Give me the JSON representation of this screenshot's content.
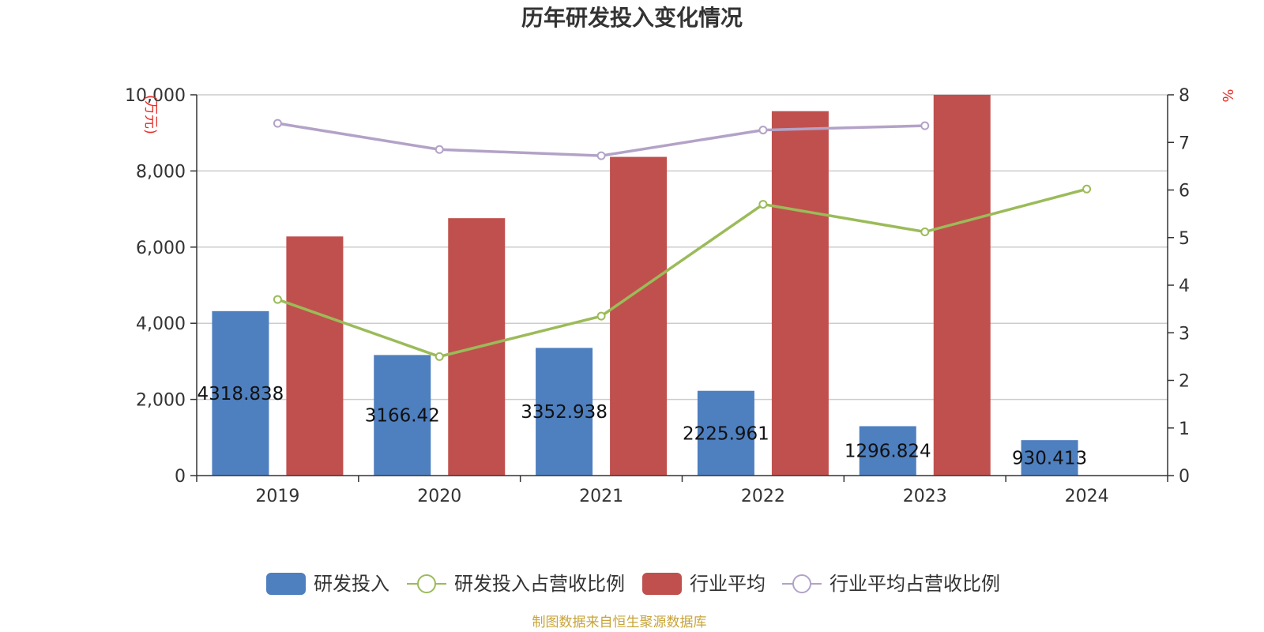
{
  "chart_data": {
    "type": "bar",
    "title": "历年研发投入变化情况",
    "categories": [
      "2019",
      "2020",
      "2021",
      "2022",
      "2023",
      "2024"
    ],
    "left_axis": {
      "unit": "(万元)",
      "min": 0,
      "max": 10000,
      "ticks": [
        "0",
        "2,000",
        "4,000",
        "6,000",
        "8,000",
        "10,000"
      ]
    },
    "right_axis": {
      "unit": "%",
      "min": 0,
      "max": 8,
      "ticks": [
        "0",
        "1",
        "2",
        "3",
        "4",
        "5",
        "6",
        "7",
        "8"
      ]
    },
    "grid": true,
    "legend_position": "bottom",
    "series": [
      {
        "name": "研发投入",
        "type": "bar",
        "axis": "left",
        "color": "#4e7fbf",
        "values": [
          4318.838,
          3166.42,
          3352.938,
          2225.961,
          1296.824,
          930.413
        ],
        "labels": [
          "4318.838",
          "3166.42",
          "3352.938",
          "2225.961",
          "1296.824",
          "930.413"
        ]
      },
      {
        "name": "研发投入占营收比例",
        "type": "line",
        "axis": "right",
        "color": "#9bbb59",
        "values": [
          3.7,
          2.5,
          3.35,
          5.7,
          5.12,
          6.02
        ]
      },
      {
        "name": "行业平均",
        "type": "bar",
        "axis": "left",
        "color": "#c0504d",
        "values": [
          6280,
          6760,
          8370,
          9570,
          10000,
          null
        ]
      },
      {
        "name": "行业平均占营收比例",
        "type": "line",
        "axis": "right",
        "color": "#b3a2c7",
        "values": [
          7.4,
          6.85,
          6.72,
          7.26,
          7.35,
          null
        ]
      }
    ]
  },
  "footer": {
    "source": "制图数据来自恒生聚源数据库"
  }
}
